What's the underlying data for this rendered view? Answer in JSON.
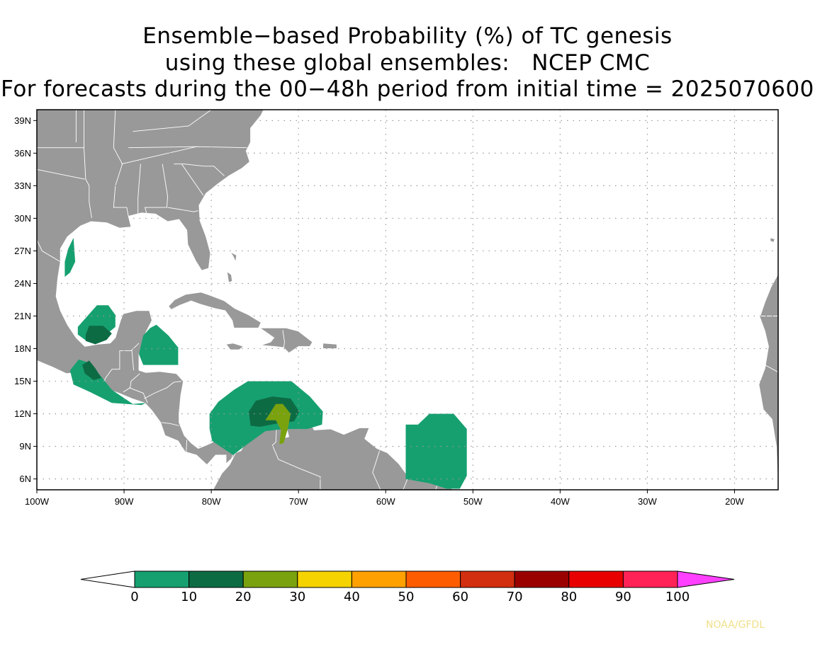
{
  "title_lines": [
    "Ensemble−based Probability (%) of TC genesis",
    "using these global ensembles:   NCEP CMC",
    "For forecasts during the 00−48h period from initial time = 2025070600"
  ],
  "map": {
    "region": "Gulf of Mexico, Caribbean and tropical Atlantic",
    "lon_range": [
      -100,
      -15
    ],
    "lat_range": [
      5,
      40
    ],
    "land_color": "#999999",
    "ocean_color": "#ffffff",
    "border_color": "#ffffff",
    "grid_lines": "dotted",
    "lat_labels": [
      {
        "lat": 39,
        "label": "39N"
      },
      {
        "lat": 36,
        "label": "36N"
      },
      {
        "lat": 33,
        "label": "33N"
      },
      {
        "lat": 30,
        "label": "30N"
      },
      {
        "lat": 27,
        "label": "27N"
      },
      {
        "lat": 24,
        "label": "24N"
      },
      {
        "lat": 21,
        "label": "21N"
      },
      {
        "lat": 18,
        "label": "18N"
      },
      {
        "lat": 15,
        "label": "15N"
      },
      {
        "lat": 12,
        "label": "12N"
      },
      {
        "lat": 9,
        "label": "9N"
      },
      {
        "lat": 6,
        "label": "6N"
      }
    ],
    "lon_labels": [
      {
        "lon": -100,
        "label": "100W"
      },
      {
        "lon": -90,
        "label": "90W"
      },
      {
        "lon": -80,
        "label": "80W"
      },
      {
        "lon": -70,
        "label": "70W"
      },
      {
        "lon": -60,
        "label": "60W"
      },
      {
        "lon": -50,
        "label": "50W"
      },
      {
        "lon": -40,
        "label": "40W"
      },
      {
        "lon": -30,
        "label": "30W"
      },
      {
        "lon": -20,
        "label": "20W"
      }
    ],
    "probability_areas": [
      {
        "region": "western Gulf coast",
        "level": "0-10",
        "lonlat": [
          [
            -96.4,
            27.2
          ],
          [
            -95.8,
            28.2
          ],
          [
            -95.6,
            26
          ],
          [
            -96.2,
            25
          ],
          [
            -96.8,
            24.6
          ],
          [
            -96.8,
            26
          ]
        ]
      },
      {
        "region": "Bay of Campeche",
        "level": "0-10",
        "lonlat": [
          [
            -95.3,
            20
          ],
          [
            -94.2,
            21
          ],
          [
            -93.1,
            22
          ],
          [
            -91.8,
            22
          ],
          [
            -91,
            21.1
          ],
          [
            -91,
            20
          ],
          [
            -92.5,
            19
          ],
          [
            -94.3,
            18.7
          ],
          [
            -95.3,
            19.3
          ]
        ]
      },
      {
        "region": "Bay of Campeche",
        "level": "10-20",
        "lonlat": [
          [
            -94.4,
            19.3
          ],
          [
            -94,
            20.1
          ],
          [
            -92.4,
            20.1
          ],
          [
            -91.4,
            19.4
          ],
          [
            -92,
            18.8
          ],
          [
            -93.3,
            18.4
          ],
          [
            -94.4,
            18.7
          ]
        ]
      },
      {
        "region": "Yucatan / Belize",
        "level": "0-10",
        "lonlat": [
          [
            -87,
            19.9
          ],
          [
            -86.3,
            20.2
          ],
          [
            -84.9,
            19.2
          ],
          [
            -83.8,
            18.1
          ],
          [
            -83.8,
            16.5
          ],
          [
            -85.5,
            16.5
          ],
          [
            -87.8,
            16.5
          ],
          [
            -88.3,
            17.5
          ],
          [
            -87.8,
            19.2
          ]
        ]
      },
      {
        "region": "Gulf of Tehuantepec",
        "level": "0-10",
        "lonlat": [
          [
            -96.2,
            16
          ],
          [
            -95.2,
            17
          ],
          [
            -94,
            16.7
          ],
          [
            -92.7,
            15.5
          ],
          [
            -91.4,
            14.2
          ],
          [
            -89,
            12.9
          ],
          [
            -87.5,
            13
          ],
          [
            -88,
            12.8
          ],
          [
            -91.4,
            13
          ],
          [
            -93.9,
            14
          ],
          [
            -95.8,
            14.7
          ]
        ]
      },
      {
        "region": "Gulf of Tehuantepec",
        "level": "10-20",
        "lonlat": [
          [
            -94.8,
            16.5
          ],
          [
            -94,
            16.9
          ],
          [
            -93.3,
            16.2
          ],
          [
            -92.6,
            15.3
          ],
          [
            -93.5,
            15.1
          ],
          [
            -94.5,
            15.7
          ]
        ]
      },
      {
        "region": "southern Caribbean",
        "level": "0-10",
        "lonlat": [
          [
            -80.2,
            12
          ],
          [
            -79.2,
            13.1
          ],
          [
            -77.4,
            14.2
          ],
          [
            -75.8,
            15
          ],
          [
            -70.8,
            15
          ],
          [
            -68.7,
            13.6
          ],
          [
            -67.2,
            12.2
          ],
          [
            -67.3,
            11
          ],
          [
            -69,
            10.6
          ],
          [
            -71.7,
            10.6
          ],
          [
            -73.8,
            10.4
          ],
          [
            -76.2,
            9
          ],
          [
            -77.5,
            8.2
          ],
          [
            -79.9,
            9.5
          ],
          [
            -80.2,
            10.6
          ]
        ]
      },
      {
        "region": "southern Caribbean",
        "level": "10-20",
        "lonlat": [
          [
            -75.7,
            12.2
          ],
          [
            -74.9,
            13.2
          ],
          [
            -73,
            13.6
          ],
          [
            -70.9,
            13.4
          ],
          [
            -69.9,
            12.2
          ],
          [
            -70.5,
            11.3
          ],
          [
            -72.5,
            11.1
          ],
          [
            -74.4,
            10.8
          ],
          [
            -75.5,
            10.9
          ]
        ]
      },
      {
        "region": "southern Caribbean",
        "level": "20-30",
        "lonlat": [
          [
            -73.8,
            11.4
          ],
          [
            -72.6,
            12.9
          ],
          [
            -71.8,
            12.9
          ],
          [
            -70.9,
            12
          ],
          [
            -71.2,
            10.7
          ],
          [
            -71.7,
            9.3
          ],
          [
            -72.2,
            9.2
          ],
          [
            -72,
            10.5
          ],
          [
            -72.6,
            11.4
          ]
        ]
      },
      {
        "region": "east of Lesser Antilles",
        "level": "0-10",
        "lonlat": [
          [
            -57.7,
            11
          ],
          [
            -56.3,
            11
          ],
          [
            -55,
            12
          ],
          [
            -52.2,
            12
          ],
          [
            -50.7,
            10.6
          ],
          [
            -50.7,
            6.3
          ],
          [
            -51.5,
            5.1
          ],
          [
            -53,
            5.1
          ],
          [
            -55,
            5.6
          ],
          [
            -57.7,
            6
          ]
        ]
      }
    ]
  },
  "colorbar": {
    "colors": [
      "#ffffff",
      "#16a070",
      "#0d6b44",
      "#7aa20e",
      "#f4d300",
      "#fea000",
      "#fe5c00",
      "#d22e10",
      "#9b0000",
      "#e80000",
      "#ff2256",
      "#ff40ff"
    ],
    "ticks": [
      "0",
      "10",
      "20",
      "30",
      "40",
      "50",
      "60",
      "70",
      "80",
      "90",
      "100"
    ]
  },
  "credit": "NOAA/GFDL"
}
